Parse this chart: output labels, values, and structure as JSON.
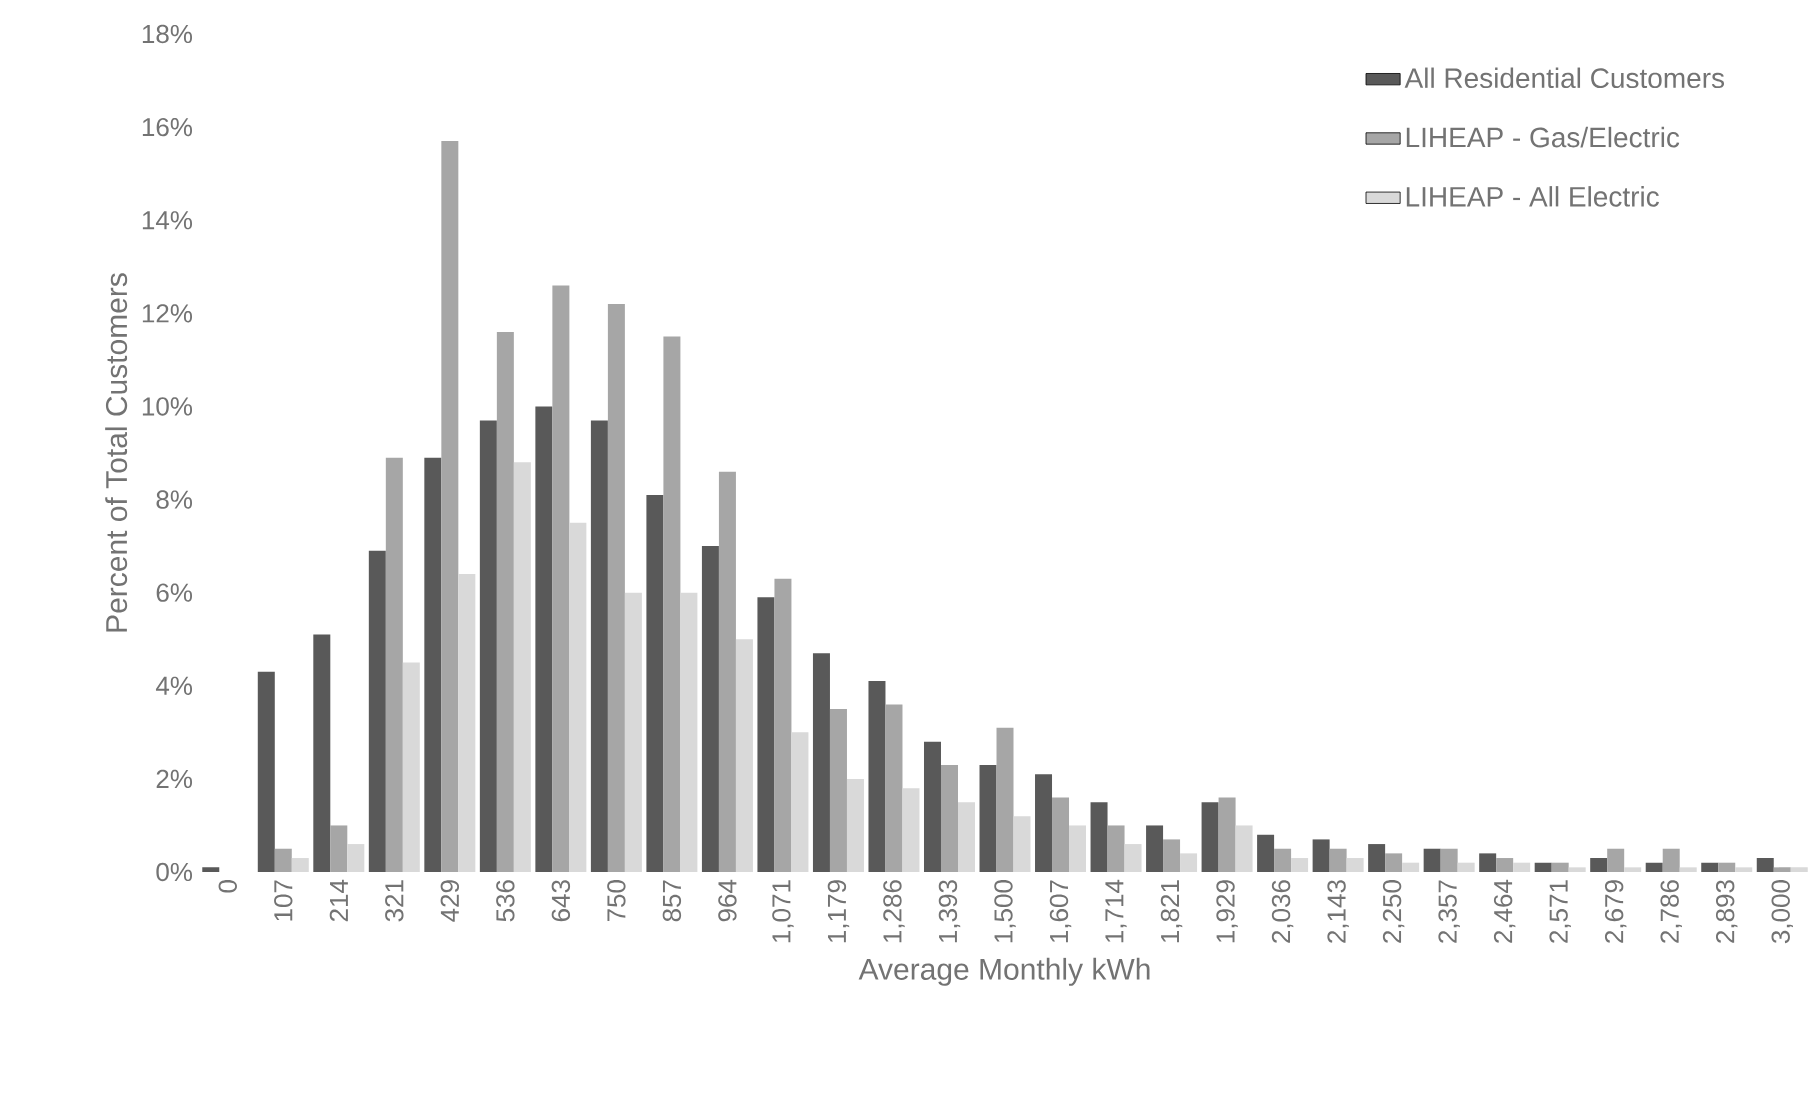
{
  "chart_data": {
    "type": "bar",
    "xlabel": "Average Monthly kWh",
    "ylabel": "Percent of Total Customers",
    "categories": [
      "0",
      "107",
      "214",
      "321",
      "429",
      "536",
      "643",
      "750",
      "857",
      "964",
      "1,071",
      "1,179",
      "1,286",
      "1,393",
      "1,500",
      "1,607",
      "1,714",
      "1,821",
      "1,929",
      "2,036",
      "2,143",
      "2,250",
      "2,357",
      "2,464",
      "2,571",
      "2,679",
      "2,786",
      "2,893",
      "3,000"
    ],
    "series": [
      {
        "name": "All Residential Customers",
        "color": "#595959",
        "values": [
          0.1,
          4.3,
          5.1,
          6.9,
          8.9,
          9.7,
          10.0,
          9.7,
          8.1,
          7.0,
          5.9,
          4.7,
          4.1,
          2.8,
          2.3,
          2.1,
          1.5,
          1.0,
          1.5,
          0.8,
          0.7,
          0.6,
          0.5,
          0.4,
          0.2,
          0.3,
          0.2,
          0.2,
          0.3
        ]
      },
      {
        "name": "LIHEAP - Gas/Electric",
        "color": "#a6a6a6",
        "values": [
          0,
          0.5,
          1.0,
          8.9,
          15.7,
          11.6,
          12.6,
          12.2,
          11.5,
          8.6,
          6.3,
          3.5,
          3.6,
          2.3,
          3.1,
          1.6,
          1.0,
          0.7,
          1.6,
          0.5,
          0.5,
          0.4,
          0.5,
          0.3,
          0.2,
          0.5,
          0.5,
          0.2,
          0.1
        ]
      },
      {
        "name": "LIHEAP - All Electric",
        "color": "#d9d9d9",
        "values": [
          0,
          0.3,
          0.6,
          4.5,
          6.4,
          8.8,
          7.5,
          6.0,
          6.0,
          5.0,
          3.0,
          2.0,
          1.8,
          1.5,
          1.2,
          1.0,
          0.6,
          0.4,
          1.0,
          0.3,
          0.3,
          0.2,
          0.2,
          0.2,
          0.1,
          0.1,
          0.1,
          0.1,
          0.1
        ]
      }
    ],
    "ylim": [
      0,
      18
    ],
    "yticks": [
      {
        "value": 0,
        "label": "0%"
      },
      {
        "value": 2,
        "label": "2%"
      },
      {
        "value": 4,
        "label": "4%"
      },
      {
        "value": 6,
        "label": "6%"
      },
      {
        "value": 8,
        "label": "8%"
      },
      {
        "value": 10,
        "label": "10%"
      },
      {
        "value": 12,
        "label": "12%"
      },
      {
        "value": 14,
        "label": "14%"
      },
      {
        "value": 16,
        "label": "16%"
      },
      {
        "value": 18,
        "label": "18%"
      }
    ],
    "legend": "top right",
    "grid": false
  }
}
